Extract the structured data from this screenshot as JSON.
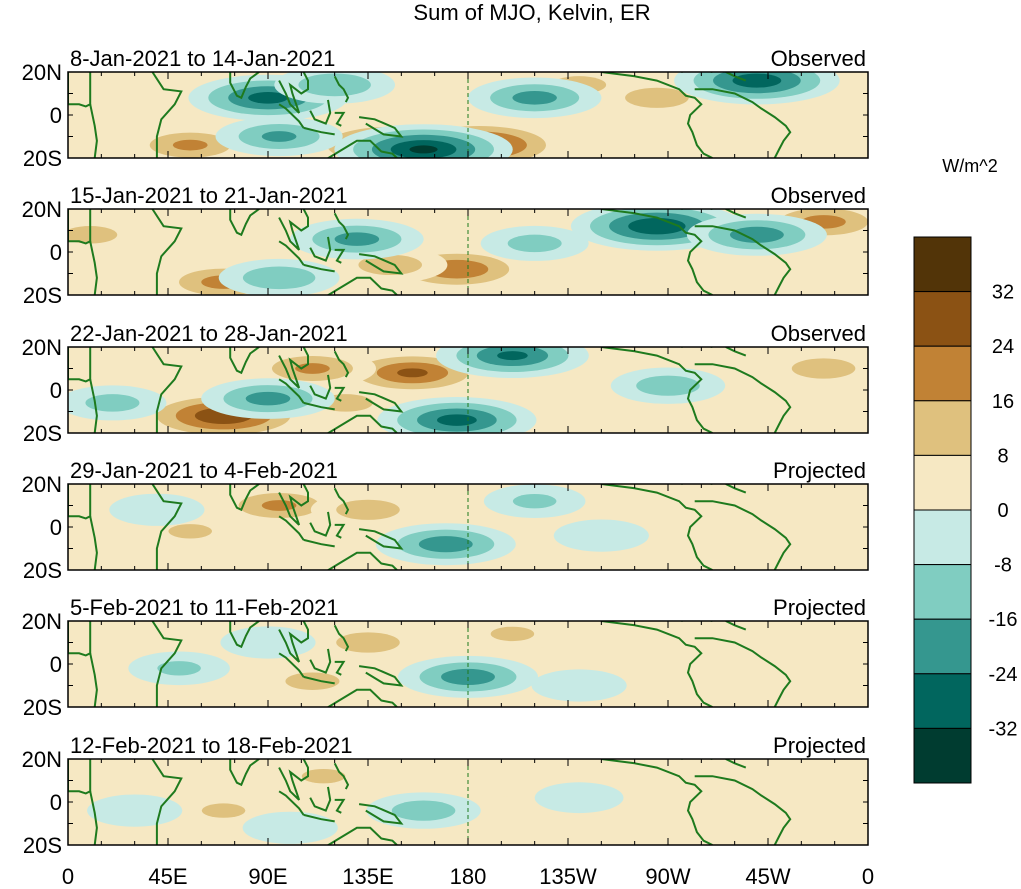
{
  "chart_data": {
    "type": "heatmap",
    "title": "Sum of MJO, Kelvin, ER",
    "colorbar": {
      "units": "W/m^2",
      "tick_labels": [
        "32",
        "24",
        "16",
        "8",
        "0",
        "-8",
        "-16",
        "-24",
        "-32"
      ],
      "colors": [
        "#523408",
        "#8b5214",
        "#c18235",
        "#dfc17e",
        "#f6e8c3",
        "#c7eae5",
        "#80cdc1",
        "#35978f",
        "#01665e",
        "#003c30"
      ]
    },
    "x_tick_labels": [
      "0",
      "45E",
      "90E",
      "135E",
      "180",
      "135W",
      "90W",
      "45W",
      "0"
    ],
    "y_tick_labels": [
      "20N",
      "0",
      "20S"
    ],
    "panels": [
      {
        "period": "8-Jan-2021 to 14-Jan-2021",
        "status": "Observed",
        "anomalies": [
          {
            "lon": 185,
            "lat": -14,
            "value": 30
          },
          {
            "lon": 145,
            "lat": -14,
            "value": 28
          },
          {
            "lon": 110,
            "lat": 6,
            "value": 12
          },
          {
            "lon": 265,
            "lat": 8,
            "value": 12
          },
          {
            "lon": 55,
            "lat": -14,
            "value": 16
          },
          {
            "lon": 230,
            "lat": 14,
            "value": 10
          },
          {
            "lon": 90,
            "lat": 8,
            "value": -26
          },
          {
            "lon": 160,
            "lat": -16,
            "value": -32
          },
          {
            "lon": 310,
            "lat": 16,
            "value": -28
          },
          {
            "lon": 210,
            "lat": 8,
            "value": -18
          },
          {
            "lon": 120,
            "lat": 14,
            "value": -14
          },
          {
            "lon": 95,
            "lat": -10,
            "value": -16
          }
        ]
      },
      {
        "period": "15-Jan-2021 to 21-Jan-2021",
        "status": "Observed",
        "anomalies": [
          {
            "lon": 175,
            "lat": -8,
            "value": 22
          },
          {
            "lon": 70,
            "lat": -14,
            "value": 18
          },
          {
            "lon": 340,
            "lat": 14,
            "value": 18
          },
          {
            "lon": 10,
            "lat": 8,
            "value": 10
          },
          {
            "lon": 145,
            "lat": -6,
            "value": 12
          },
          {
            "lon": 265,
            "lat": 12,
            "value": -30
          },
          {
            "lon": 310,
            "lat": 8,
            "value": -20
          },
          {
            "lon": 130,
            "lat": 6,
            "value": -18
          },
          {
            "lon": 95,
            "lat": -12,
            "value": -14
          },
          {
            "lon": 210,
            "lat": 4,
            "value": -10
          }
        ]
      },
      {
        "period": "22-Jan-2021 to 28-Jan-2021",
        "status": "Observed",
        "anomalies": [
          {
            "lon": 70,
            "lat": -12,
            "value": 30
          },
          {
            "lon": 155,
            "lat": 8,
            "value": 24
          },
          {
            "lon": 110,
            "lat": 10,
            "value": 16
          },
          {
            "lon": 340,
            "lat": 10,
            "value": 12
          },
          {
            "lon": 125,
            "lat": -6,
            "value": 10
          },
          {
            "lon": 175,
            "lat": -14,
            "value": -26
          },
          {
            "lon": 200,
            "lat": 16,
            "value": -24
          },
          {
            "lon": 90,
            "lat": -4,
            "value": -18
          },
          {
            "lon": 270,
            "lat": 2,
            "value": -12
          },
          {
            "lon": 20,
            "lat": -6,
            "value": -10
          }
        ]
      },
      {
        "period": "29-Jan-2021 to 4-Feb-2021",
        "status": "Projected",
        "anomalies": [
          {
            "lon": 95,
            "lat": 10,
            "value": 16
          },
          {
            "lon": 135,
            "lat": 8,
            "value": 12
          },
          {
            "lon": 55,
            "lat": -2,
            "value": 8
          },
          {
            "lon": 170,
            "lat": -8,
            "value": -20
          },
          {
            "lon": 210,
            "lat": 12,
            "value": -8
          },
          {
            "lon": 240,
            "lat": -4,
            "value": -6
          },
          {
            "lon": 40,
            "lat": 8,
            "value": -6
          }
        ]
      },
      {
        "period": "5-Feb-2021 to 11-Feb-2021",
        "status": "Projected",
        "anomalies": [
          {
            "lon": 135,
            "lat": 10,
            "value": 12
          },
          {
            "lon": 110,
            "lat": -8,
            "value": 10
          },
          {
            "lon": 200,
            "lat": 14,
            "value": 8
          },
          {
            "lon": 180,
            "lat": -6,
            "value": -20
          },
          {
            "lon": 50,
            "lat": -2,
            "value": -8
          },
          {
            "lon": 90,
            "lat": 10,
            "value": -6
          },
          {
            "lon": 230,
            "lat": -10,
            "value": -6
          }
        ]
      },
      {
        "period": "12-Feb-2021 to 18-Feb-2021",
        "status": "Projected",
        "anomalies": [
          {
            "lon": 70,
            "lat": -4,
            "value": 8
          },
          {
            "lon": 115,
            "lat": 12,
            "value": 8
          },
          {
            "lon": 195,
            "lat": 10,
            "value": 6
          },
          {
            "lon": 160,
            "lat": -4,
            "value": -12
          },
          {
            "lon": 30,
            "lat": -4,
            "value": -6
          },
          {
            "lon": 100,
            "lat": -12,
            "value": -6
          },
          {
            "lon": 230,
            "lat": 2,
            "value": -4
          }
        ]
      }
    ]
  }
}
